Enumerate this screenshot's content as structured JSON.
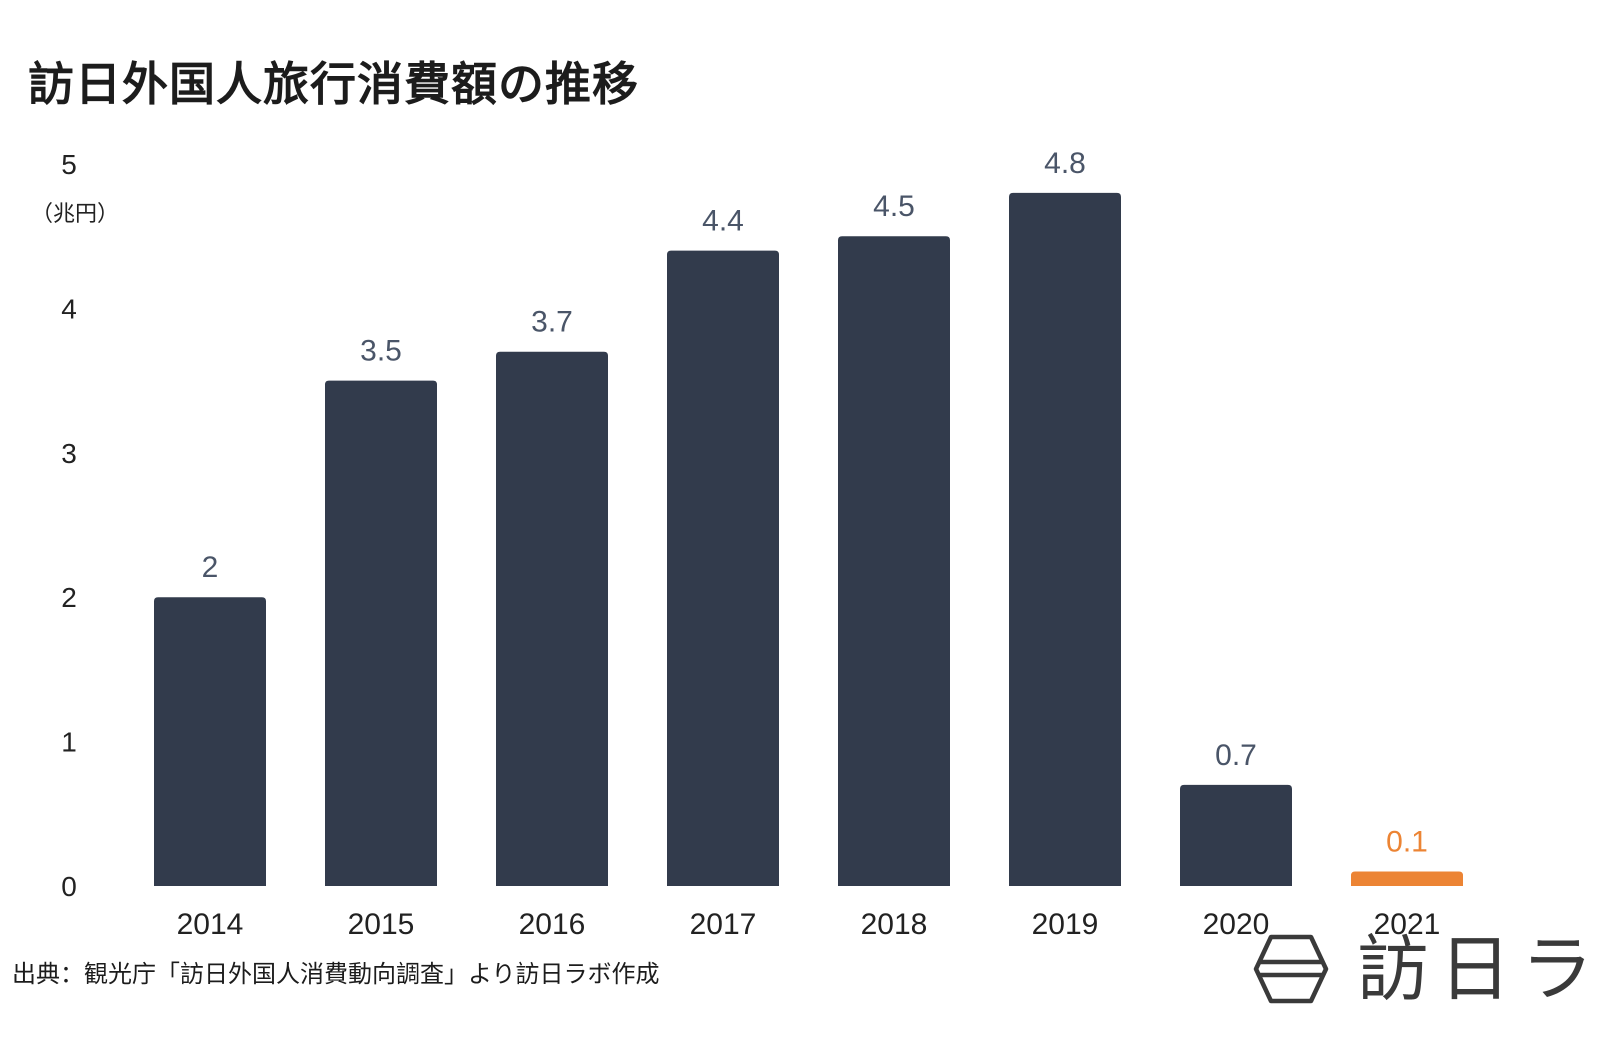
{
  "title": "訪日外国人旅行消費額の推移",
  "source": "出典：観光庁「訪日外国人消費動向調査」より訪日ラボ作成",
  "logo_text": "訪日ラ",
  "colors": {
    "bar": "#323b4c",
    "highlight": "#ec8434",
    "label": "#4a5568",
    "axis_text": "#222222"
  },
  "chart_data": {
    "type": "bar",
    "title": "訪日外国人旅行消費額の推移",
    "ylabel": "（兆円）",
    "xlabel": "",
    "ylim": [
      0,
      5
    ],
    "yticks": [
      0,
      1,
      2,
      3,
      4,
      5
    ],
    "grid": false,
    "categories": [
      "2014",
      "2015",
      "2016",
      "2017",
      "2018",
      "2019",
      "2020",
      "2021"
    ],
    "values": [
      2,
      3.5,
      3.7,
      4.4,
      4.5,
      4.8,
      0.7,
      0.1
    ],
    "data_labels": [
      "2",
      "3.5",
      "3.7",
      "4.4",
      "4.5",
      "4.8",
      "0.7",
      "0.1"
    ],
    "highlight": [
      "2021"
    ]
  }
}
